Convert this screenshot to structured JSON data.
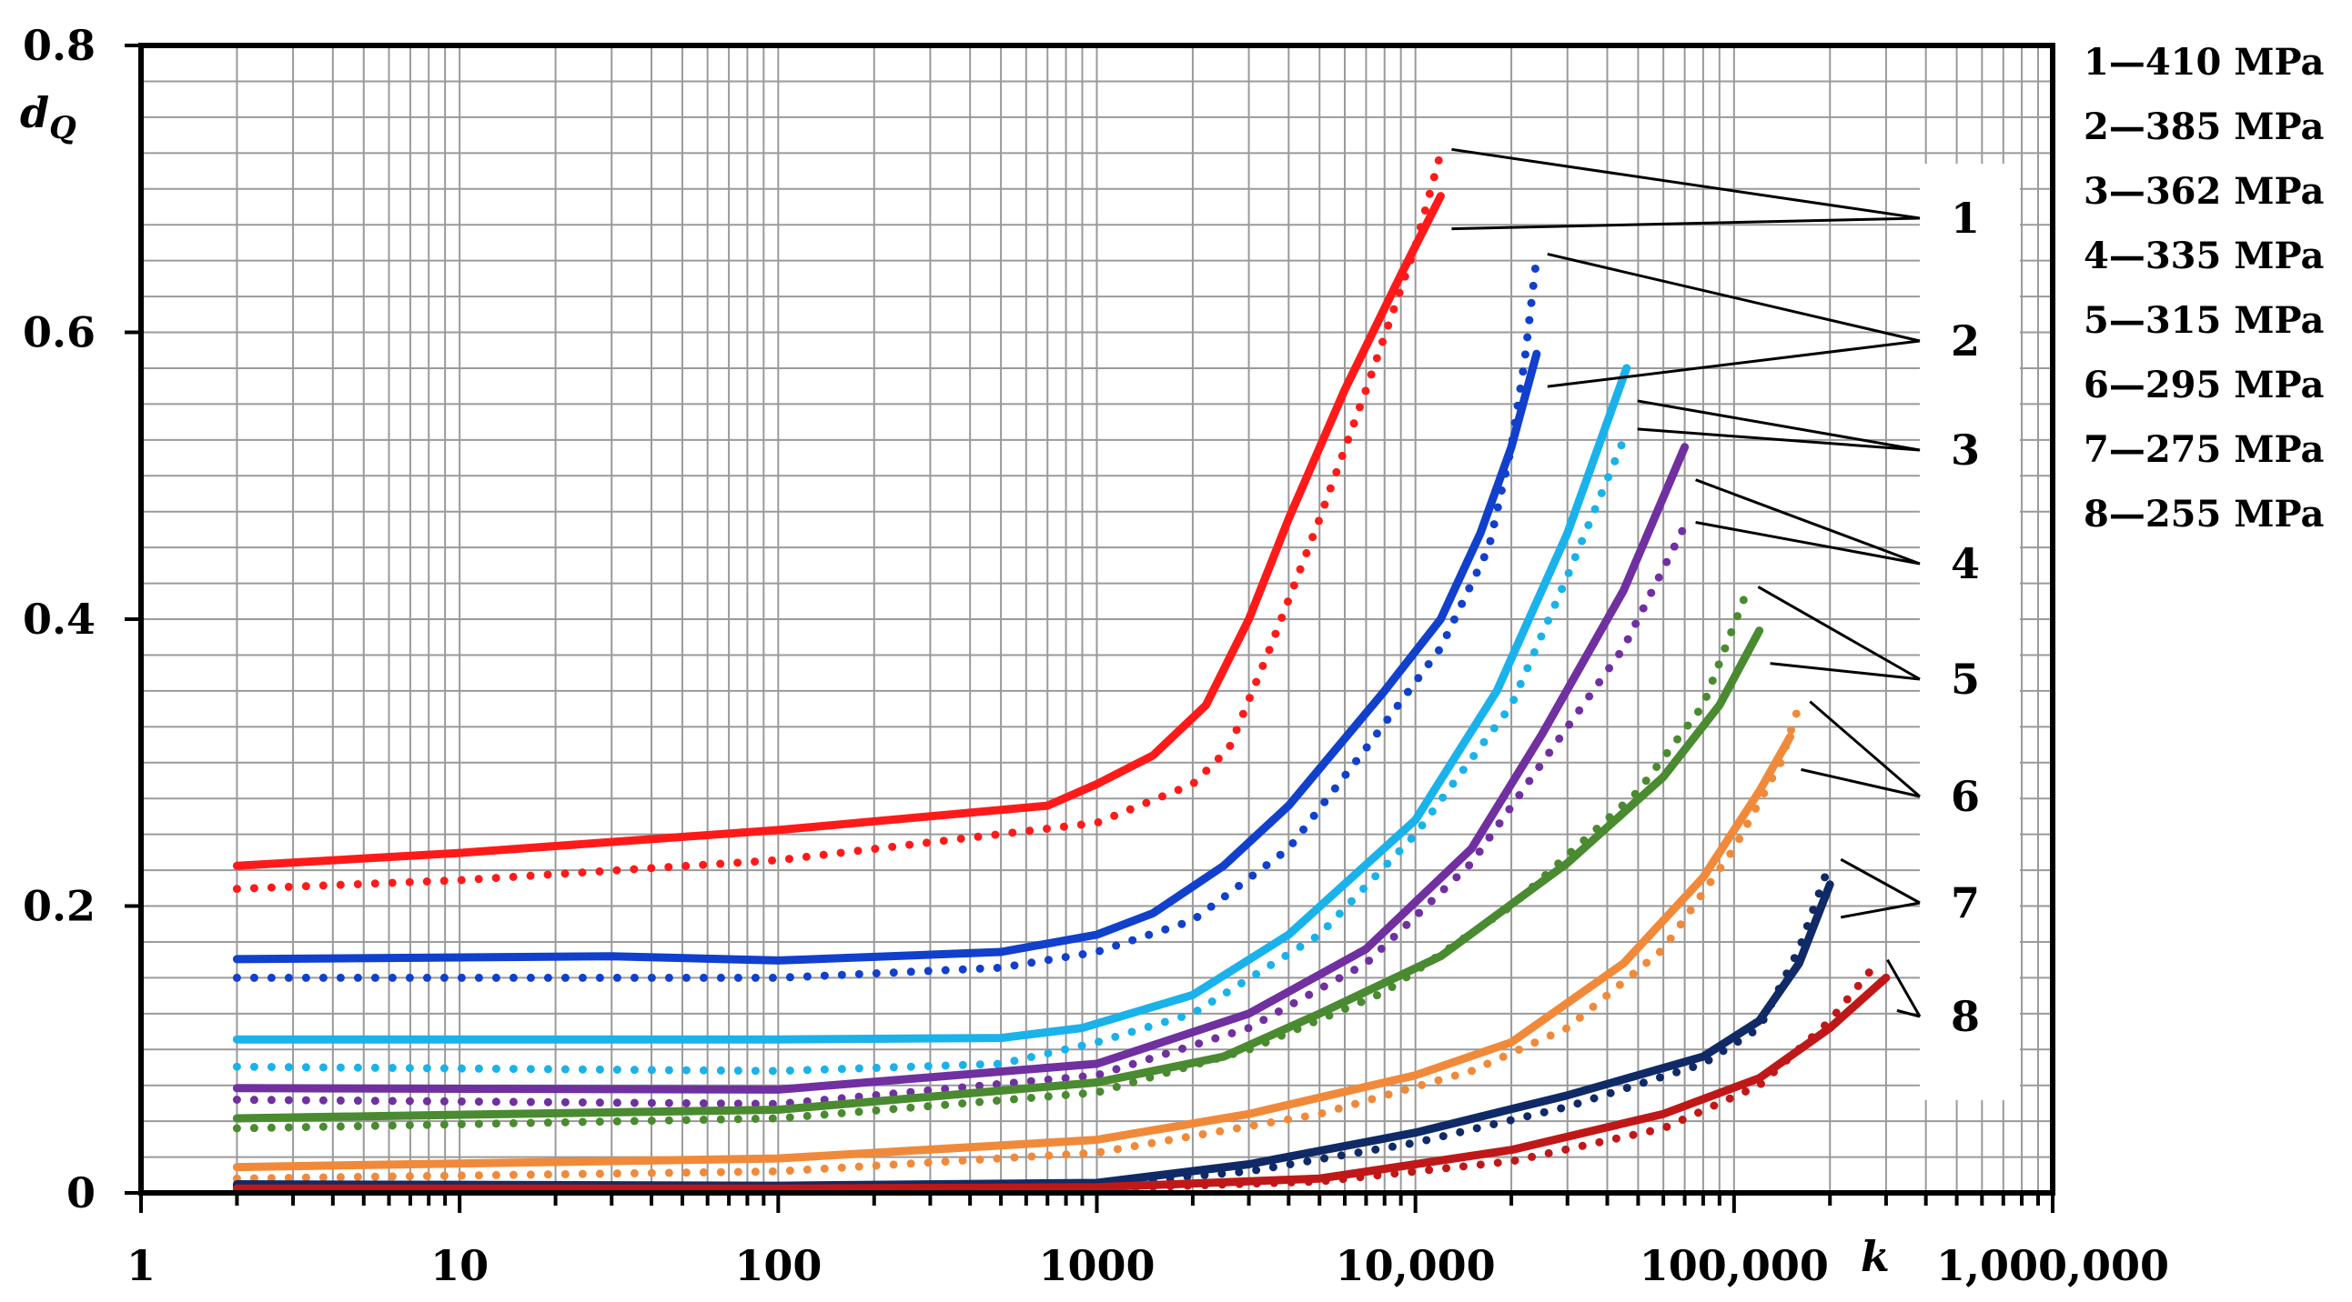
{
  "chart_data": {
    "type": "line",
    "xscale": "log",
    "xlim": [
      1,
      1000000
    ],
    "ylim": [
      0,
      0.8
    ],
    "ylabel_main": "d",
    "ylabel_sub": "Q",
    "xlabel": "k",
    "x_tick_labels": [
      "1",
      "10",
      "100",
      "1000",
      "10,000",
      "100,000",
      "1,000,000"
    ],
    "y_tick_labels": [
      "0",
      "0.2",
      "0.4",
      "0.6",
      "0.8"
    ],
    "y_tick_values": [
      0,
      0.2,
      0.4,
      0.6,
      0.8
    ],
    "legend": [
      "1—410 MPa",
      "2—385 MPa",
      "3—362 MPa",
      "4—335 MPa",
      "5—315 MPa",
      "6—295 MPa",
      "7—275 MPa",
      "8—255 MPa"
    ],
    "series": [
      {
        "id": "1",
        "name": "410 MPa",
        "color": "#ff1a1a",
        "solid": [
          [
            2,
            0.228
          ],
          [
            10,
            0.237
          ],
          [
            100,
            0.253
          ],
          [
            700,
            0.27
          ],
          [
            1000,
            0.285
          ],
          [
            1500,
            0.305
          ],
          [
            2200,
            0.34
          ],
          [
            3000,
            0.4
          ],
          [
            4000,
            0.47
          ],
          [
            6000,
            0.56
          ],
          [
            9000,
            0.64
          ],
          [
            12000,
            0.695
          ]
        ],
        "dotted": [
          [
            2,
            0.212
          ],
          [
            10,
            0.218
          ],
          [
            100,
            0.232
          ],
          [
            1000,
            0.258
          ],
          [
            2000,
            0.285
          ],
          [
            2600,
            0.31
          ],
          [
            3500,
            0.38
          ],
          [
            5000,
            0.47
          ],
          [
            7000,
            0.56
          ],
          [
            10000,
            0.66
          ],
          [
            12000,
            0.725
          ]
        ]
      },
      {
        "id": "2",
        "name": "385 MPa",
        "color": "#1040cc",
        "solid": [
          [
            2,
            0.163
          ],
          [
            30,
            0.165
          ],
          [
            100,
            0.162
          ],
          [
            500,
            0.168
          ],
          [
            1000,
            0.18
          ],
          [
            1500,
            0.195
          ],
          [
            2500,
            0.228
          ],
          [
            4000,
            0.27
          ],
          [
            8000,
            0.35
          ],
          [
            12000,
            0.4
          ],
          [
            16000,
            0.46
          ],
          [
            20000,
            0.52
          ],
          [
            24000,
            0.585
          ]
        ],
        "dotted": [
          [
            2,
            0.15
          ],
          [
            100,
            0.15
          ],
          [
            500,
            0.157
          ],
          [
            1000,
            0.168
          ],
          [
            2000,
            0.19
          ],
          [
            4000,
            0.24
          ],
          [
            7000,
            0.31
          ],
          [
            12000,
            0.38
          ],
          [
            17000,
            0.45
          ],
          [
            20000,
            0.52
          ],
          [
            22000,
            0.58
          ],
          [
            24000,
            0.652
          ]
        ]
      },
      {
        "id": "3",
        "name": "362 MPa",
        "color": "#1ab2ea",
        "solid": [
          [
            2,
            0.107
          ],
          [
            100,
            0.107
          ],
          [
            500,
            0.108
          ],
          [
            900,
            0.115
          ],
          [
            2000,
            0.138
          ],
          [
            4000,
            0.18
          ],
          [
            10000,
            0.26
          ],
          [
            18000,
            0.35
          ],
          [
            30000,
            0.46
          ],
          [
            46000,
            0.575
          ]
        ],
        "dotted": [
          [
            2,
            0.088
          ],
          [
            100,
            0.085
          ],
          [
            500,
            0.09
          ],
          [
            1000,
            0.105
          ],
          [
            2000,
            0.125
          ],
          [
            5000,
            0.18
          ],
          [
            10000,
            0.25
          ],
          [
            20000,
            0.34
          ],
          [
            30000,
            0.43
          ],
          [
            46000,
            0.53
          ]
        ]
      },
      {
        "id": "4",
        "name": "335 MPa",
        "color": "#7030a0",
        "solid": [
          [
            2,
            0.073
          ],
          [
            100,
            0.072
          ],
          [
            1000,
            0.09
          ],
          [
            3000,
            0.125
          ],
          [
            7000,
            0.17
          ],
          [
            15000,
            0.24
          ],
          [
            25000,
            0.32
          ],
          [
            45000,
            0.42
          ],
          [
            70000,
            0.52
          ]
        ],
        "dotted": [
          [
            2,
            0.065
          ],
          [
            100,
            0.062
          ],
          [
            1000,
            0.082
          ],
          [
            3000,
            0.115
          ],
          [
            7000,
            0.16
          ],
          [
            15000,
            0.23
          ],
          [
            25000,
            0.3
          ],
          [
            45000,
            0.38
          ],
          [
            70000,
            0.465
          ]
        ]
      },
      {
        "id": "5",
        "name": "315 MPa",
        "color": "#4a8a30",
        "solid": [
          [
            2,
            0.052
          ],
          [
            100,
            0.058
          ],
          [
            1000,
            0.077
          ],
          [
            2500,
            0.095
          ],
          [
            5000,
            0.125
          ],
          [
            12000,
            0.165
          ],
          [
            30000,
            0.23
          ],
          [
            60000,
            0.29
          ],
          [
            90000,
            0.34
          ],
          [
            120000,
            0.392
          ]
        ],
        "dotted": [
          [
            2,
            0.045
          ],
          [
            100,
            0.052
          ],
          [
            1000,
            0.07
          ],
          [
            3000,
            0.1
          ],
          [
            8000,
            0.14
          ],
          [
            20000,
            0.2
          ],
          [
            50000,
            0.28
          ],
          [
            80000,
            0.34
          ],
          [
            110000,
            0.42
          ]
        ]
      },
      {
        "id": "6",
        "name": "295 MPa",
        "color": "#f08a3a",
        "solid": [
          [
            2,
            0.018
          ],
          [
            100,
            0.024
          ],
          [
            1000,
            0.037
          ],
          [
            3000,
            0.055
          ],
          [
            10000,
            0.082
          ],
          [
            20000,
            0.105
          ],
          [
            45000,
            0.16
          ],
          [
            80000,
            0.22
          ],
          [
            120000,
            0.28
          ],
          [
            150000,
            0.318
          ]
        ],
        "dotted": [
          [
            2,
            0.01
          ],
          [
            100,
            0.015
          ],
          [
            1000,
            0.028
          ],
          [
            5000,
            0.055
          ],
          [
            15000,
            0.085
          ],
          [
            30000,
            0.115
          ],
          [
            60000,
            0.17
          ],
          [
            100000,
            0.24
          ],
          [
            140000,
            0.3
          ],
          [
            160000,
            0.34
          ]
        ]
      },
      {
        "id": "7",
        "name": "275 MPa",
        "color": "#0f2a66",
        "solid": [
          [
            2,
            0.006
          ],
          [
            100,
            0.005
          ],
          [
            1000,
            0.007
          ],
          [
            3000,
            0.02
          ],
          [
            10000,
            0.042
          ],
          [
            30000,
            0.068
          ],
          [
            80000,
            0.095
          ],
          [
            120000,
            0.12
          ],
          [
            160000,
            0.16
          ],
          [
            200000,
            0.215
          ]
        ],
        "dotted": [
          [
            2,
            0.005
          ],
          [
            100,
            0.004
          ],
          [
            1000,
            0.006
          ],
          [
            3000,
            0.015
          ],
          [
            10000,
            0.035
          ],
          [
            30000,
            0.06
          ],
          [
            80000,
            0.09
          ],
          [
            120000,
            0.115
          ],
          [
            160000,
            0.17
          ],
          [
            200000,
            0.23
          ]
        ]
      },
      {
        "id": "8",
        "name": "255 MPa",
        "color": "#c01818",
        "solid": [
          [
            2,
            0.003
          ],
          [
            100,
            0.003
          ],
          [
            1000,
            0.004
          ],
          [
            5000,
            0.01
          ],
          [
            20000,
            0.03
          ],
          [
            60000,
            0.055
          ],
          [
            120000,
            0.08
          ],
          [
            200000,
            0.115
          ],
          [
            300000,
            0.15
          ]
        ],
        "dotted": [
          [
            2,
            0.002
          ],
          [
            100,
            0.002
          ],
          [
            1000,
            0.003
          ],
          [
            5000,
            0.008
          ],
          [
            20000,
            0.022
          ],
          [
            60000,
            0.045
          ],
          [
            120000,
            0.075
          ],
          [
            200000,
            0.12
          ],
          [
            280000,
            0.16
          ]
        ]
      }
    ],
    "curve_labels": [
      "1",
      "2",
      "3",
      "4",
      "5",
      "6",
      "7",
      "8"
    ]
  }
}
